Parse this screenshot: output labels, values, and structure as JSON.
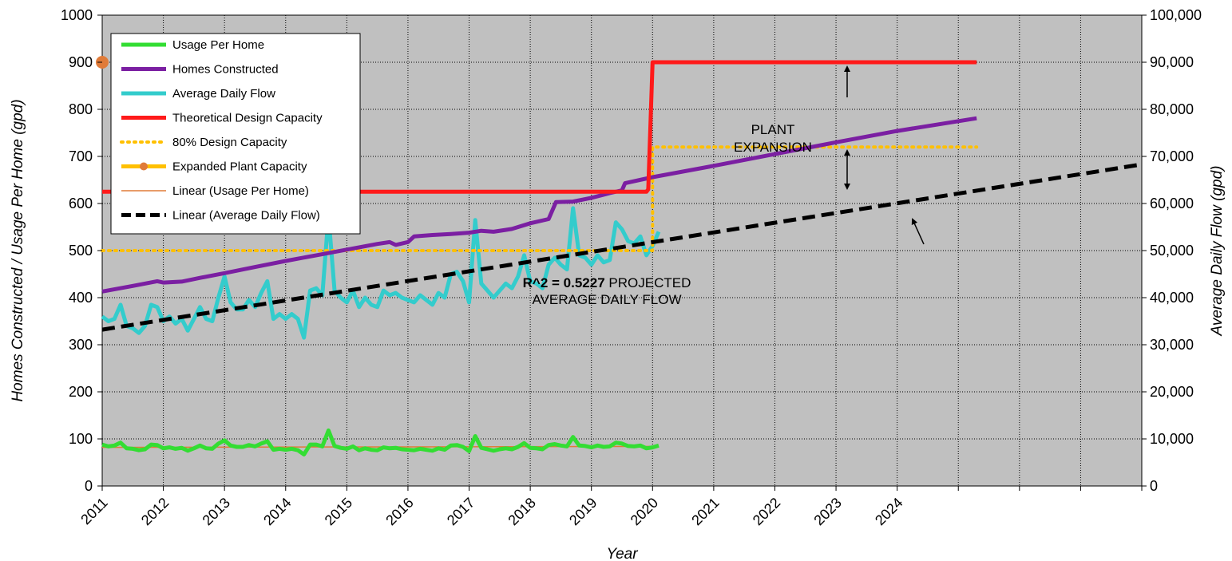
{
  "chart_data": {
    "type": "line",
    "title": "",
    "xlabel": "Year",
    "ylabel_left": "Homes Constructed / Usage Per Home (gpd)",
    "ylabel_right": "Average Daily Flow (gpd)",
    "x_range": [
      2011.0,
      2028.0
    ],
    "ylim_left": [
      0,
      1000
    ],
    "ylim_right": [
      0,
      100000
    ],
    "x_tick_labels": [
      "2011",
      "2012",
      "2013",
      "2014",
      "2015",
      "2016",
      "2017",
      "2018",
      "2019",
      "2020",
      "2021",
      "2022",
      "2023",
      "2024"
    ],
    "x_tick_values": [
      2011,
      2012,
      2013,
      2014,
      2015,
      2016,
      2017,
      2018,
      2019,
      2020,
      2021,
      2022,
      2023,
      2024
    ],
    "y_left_ticks": [
      "0",
      "100",
      "200",
      "300",
      "400",
      "500",
      "600",
      "700",
      "800",
      "900",
      "1000"
    ],
    "y_right_ticks": [
      "0",
      "10,000",
      "20,000",
      "30,000",
      "40,000",
      "50,000",
      "60,000",
      "70,000",
      "80,000",
      "90,000",
      "100,000"
    ],
    "grid": true,
    "legend_position": "top-left",
    "series": [
      {
        "name": "Homes Constructed",
        "axis": "left",
        "color": "#7B1FA2",
        "style": "solid",
        "points": [
          [
            2011.0,
            413
          ],
          [
            2011.5,
            425
          ],
          [
            2011.9,
            435
          ],
          [
            2012.0,
            432
          ],
          [
            2012.3,
            434
          ],
          [
            2012.6,
            442
          ],
          [
            2013.0,
            452
          ],
          [
            2013.5,
            465
          ],
          [
            2014.0,
            478
          ],
          [
            2014.5,
            490
          ],
          [
            2015.0,
            502
          ],
          [
            2015.5,
            514
          ],
          [
            2015.7,
            518
          ],
          [
            2015.8,
            512
          ],
          [
            2016.0,
            518
          ],
          [
            2016.1,
            530
          ],
          [
            2016.4,
            533
          ],
          [
            2016.7,
            535
          ],
          [
            2017.0,
            538
          ],
          [
            2017.2,
            542
          ],
          [
            2017.4,
            540
          ],
          [
            2017.7,
            546
          ],
          [
            2018.0,
            558
          ],
          [
            2018.3,
            567
          ],
          [
            2018.42,
            603
          ],
          [
            2018.7,
            604
          ],
          [
            2019.0,
            612
          ],
          [
            2019.3,
            622
          ],
          [
            2019.5,
            628
          ],
          [
            2019.55,
            643
          ],
          [
            2020.0,
            656
          ],
          [
            2021.0,
            680
          ],
          [
            2022.0,
            705
          ],
          [
            2023.0,
            730
          ],
          [
            2024.0,
            754
          ],
          [
            2025.3,
            781
          ]
        ]
      },
      {
        "name": "Average Daily Flow",
        "axis": "right",
        "color": "#33CCCC",
        "style": "solid",
        "points": [
          [
            2011.0,
            36000
          ],
          [
            2011.1,
            35000
          ],
          [
            2011.2,
            35500
          ],
          [
            2011.3,
            38500
          ],
          [
            2011.4,
            34000
          ],
          [
            2011.5,
            33500
          ],
          [
            2011.6,
            32500
          ],
          [
            2011.7,
            34000
          ],
          [
            2011.8,
            38500
          ],
          [
            2011.9,
            38000
          ],
          [
            2012.0,
            35000
          ],
          [
            2012.1,
            36000
          ],
          [
            2012.2,
            34500
          ],
          [
            2012.3,
            35500
          ],
          [
            2012.4,
            33000
          ],
          [
            2012.5,
            35500
          ],
          [
            2012.6,
            38000
          ],
          [
            2012.7,
            35500
          ],
          [
            2012.8,
            35000
          ],
          [
            2012.9,
            40000
          ],
          [
            2013.0,
            44500
          ],
          [
            2013.1,
            39000
          ],
          [
            2013.2,
            37500
          ],
          [
            2013.3,
            37500
          ],
          [
            2013.4,
            39500
          ],
          [
            2013.5,
            38000
          ],
          [
            2013.6,
            41000
          ],
          [
            2013.7,
            43500
          ],
          [
            2013.8,
            35500
          ],
          [
            2013.9,
            36500
          ],
          [
            2014.0,
            35500
          ],
          [
            2014.1,
            36500
          ],
          [
            2014.2,
            35500
          ],
          [
            2014.3,
            31500
          ],
          [
            2014.4,
            41500
          ],
          [
            2014.5,
            42000
          ],
          [
            2014.6,
            40500
          ],
          [
            2014.7,
            57500
          ],
          [
            2014.8,
            41500
          ],
          [
            2014.9,
            40000
          ],
          [
            2015.0,
            39000
          ],
          [
            2015.1,
            41500
          ],
          [
            2015.2,
            38000
          ],
          [
            2015.3,
            40000
          ],
          [
            2015.4,
            38500
          ],
          [
            2015.5,
            38000
          ],
          [
            2015.6,
            41500
          ],
          [
            2015.7,
            40500
          ],
          [
            2015.8,
            41000
          ],
          [
            2015.9,
            40000
          ],
          [
            2016.0,
            39500
          ],
          [
            2016.1,
            39000
          ],
          [
            2016.2,
            40500
          ],
          [
            2016.3,
            39500
          ],
          [
            2016.4,
            38500
          ],
          [
            2016.5,
            41000
          ],
          [
            2016.6,
            40000
          ],
          [
            2016.7,
            45000
          ],
          [
            2016.8,
            45500
          ],
          [
            2016.9,
            43500
          ],
          [
            2017.0,
            39000
          ],
          [
            2017.1,
            56500
          ],
          [
            2017.2,
            43000
          ],
          [
            2017.3,
            41500
          ],
          [
            2017.4,
            40000
          ],
          [
            2017.5,
            41500
          ],
          [
            2017.6,
            43000
          ],
          [
            2017.7,
            42000
          ],
          [
            2017.8,
            44500
          ],
          [
            2017.9,
            49000
          ],
          [
            2018.0,
            43500
          ],
          [
            2018.1,
            43000
          ],
          [
            2018.2,
            42000
          ],
          [
            2018.3,
            47000
          ],
          [
            2018.4,
            48500
          ],
          [
            2018.5,
            47000
          ],
          [
            2018.6,
            46000
          ],
          [
            2018.7,
            59000
          ],
          [
            2018.8,
            49000
          ],
          [
            2018.9,
            48500
          ],
          [
            2019.0,
            47000
          ],
          [
            2019.1,
            49000
          ],
          [
            2019.2,
            47500
          ],
          [
            2019.3,
            48000
          ],
          [
            2019.4,
            56000
          ],
          [
            2019.5,
            54500
          ],
          [
            2019.6,
            52000
          ],
          [
            2019.7,
            51500
          ],
          [
            2019.8,
            53000
          ],
          [
            2019.9,
            49000
          ],
          [
            2020.0,
            51000
          ],
          [
            2020.1,
            54000
          ]
        ]
      },
      {
        "name": "Usage Per Home",
        "axis": "left",
        "color": "#33DD33",
        "style": "solid",
        "points": [
          [
            2011.0,
            88
          ],
          [
            2011.1,
            84
          ],
          [
            2011.2,
            86
          ],
          [
            2011.3,
            92
          ],
          [
            2011.4,
            80
          ],
          [
            2011.5,
            79
          ],
          [
            2011.6,
            76
          ],
          [
            2011.7,
            78
          ],
          [
            2011.8,
            88
          ],
          [
            2011.9,
            87
          ],
          [
            2012.0,
            80
          ],
          [
            2012.1,
            82
          ],
          [
            2012.2,
            79
          ],
          [
            2012.3,
            81
          ],
          [
            2012.4,
            75
          ],
          [
            2012.5,
            80
          ],
          [
            2012.6,
            86
          ],
          [
            2012.7,
            80
          ],
          [
            2012.8,
            79
          ],
          [
            2012.9,
            90
          ],
          [
            2013.0,
            97
          ],
          [
            2013.1,
            86
          ],
          [
            2013.2,
            83
          ],
          [
            2013.3,
            83
          ],
          [
            2013.4,
            87
          ],
          [
            2013.5,
            84
          ],
          [
            2013.6,
            90
          ],
          [
            2013.7,
            95
          ],
          [
            2013.8,
            77
          ],
          [
            2013.9,
            79
          ],
          [
            2014.0,
            77
          ],
          [
            2014.1,
            79
          ],
          [
            2014.2,
            76
          ],
          [
            2014.3,
            67
          ],
          [
            2014.4,
            88
          ],
          [
            2014.5,
            88
          ],
          [
            2014.6,
            84
          ],
          [
            2014.7,
            118
          ],
          [
            2014.8,
            85
          ],
          [
            2014.9,
            81
          ],
          [
            2015.0,
            79
          ],
          [
            2015.1,
            84
          ],
          [
            2015.2,
            76
          ],
          [
            2015.3,
            80
          ],
          [
            2015.4,
            77
          ],
          [
            2015.5,
            76
          ],
          [
            2015.6,
            82
          ],
          [
            2015.7,
            80
          ],
          [
            2015.8,
            81
          ],
          [
            2015.9,
            78
          ],
          [
            2016.0,
            77
          ],
          [
            2016.1,
            76
          ],
          [
            2016.2,
            79
          ],
          [
            2016.3,
            77
          ],
          [
            2016.4,
            75
          ],
          [
            2016.5,
            80
          ],
          [
            2016.6,
            77
          ],
          [
            2016.7,
            86
          ],
          [
            2016.8,
            87
          ],
          [
            2016.9,
            83
          ],
          [
            2017.0,
            74
          ],
          [
            2017.1,
            106
          ],
          [
            2017.2,
            81
          ],
          [
            2017.3,
            78
          ],
          [
            2017.4,
            75
          ],
          [
            2017.5,
            78
          ],
          [
            2017.6,
            80
          ],
          [
            2017.7,
            78
          ],
          [
            2017.8,
            83
          ],
          [
            2017.9,
            91
          ],
          [
            2018.0,
            81
          ],
          [
            2018.1,
            80
          ],
          [
            2018.2,
            78
          ],
          [
            2018.3,
            87
          ],
          [
            2018.4,
            89
          ],
          [
            2018.5,
            86
          ],
          [
            2018.6,
            84
          ],
          [
            2018.7,
            104
          ],
          [
            2018.8,
            86
          ],
          [
            2018.9,
            85
          ],
          [
            2019.0,
            82
          ],
          [
            2019.1,
            86
          ],
          [
            2019.2,
            83
          ],
          [
            2019.3,
            84
          ],
          [
            2019.4,
            92
          ],
          [
            2019.5,
            90
          ],
          [
            2019.6,
            85
          ],
          [
            2019.7,
            84
          ],
          [
            2019.8,
            86
          ],
          [
            2019.9,
            80
          ],
          [
            2020.0,
            82
          ],
          [
            2020.1,
            86
          ]
        ]
      },
      {
        "name": "Theoretical Design Capacity",
        "axis": "right",
        "color": "#FF1A1A",
        "style": "solid",
        "points": [
          [
            2011.0,
            62500
          ],
          [
            2019.9,
            62500
          ],
          [
            2019.93,
            63000
          ],
          [
            2020.0,
            90000
          ],
          [
            2025.3,
            90000
          ]
        ]
      },
      {
        "name": "80% Design Capacity",
        "axis": "right",
        "color": "#FFC000",
        "style": "dotted",
        "points": [
          [
            2011.0,
            50000
          ],
          [
            2020.0,
            50000
          ],
          [
            2020.0,
            72000
          ],
          [
            2025.3,
            72000
          ]
        ]
      },
      {
        "name": "Expanded Plant Capacity",
        "axis": "right",
        "color": "#FFC000",
        "marker_color": "#E07B39",
        "style": "marker",
        "points": [
          [
            2011.0,
            90000
          ]
        ]
      },
      {
        "name": "Linear (Usage Per Home)",
        "axis": "left",
        "color": "#E07B39",
        "style": "thin",
        "points": [
          [
            2011.0,
            82
          ],
          [
            2020.1,
            84
          ]
        ]
      },
      {
        "name": "Linear (Average Daily Flow)",
        "axis": "right",
        "color": "#000000",
        "style": "dashed",
        "points": [
          [
            2011.0,
            33200
          ],
          [
            2028.0,
            68300
          ]
        ]
      }
    ],
    "legend": [
      {
        "name": "Usage Per Home",
        "color": "#33DD33",
        "style": "solid"
      },
      {
        "name": "Homes Constructed",
        "color": "#7B1FA2",
        "style": "solid"
      },
      {
        "name": "Average Daily Flow",
        "color": "#33CCCC",
        "style": "solid"
      },
      {
        "name": "Theoretical Design Capacity",
        "color": "#FF1A1A",
        "style": "solid"
      },
      {
        "name": "80% Design Capacity",
        "color": "#FFC000",
        "style": "dotted"
      },
      {
        "name": "Expanded Plant Capacity",
        "color": "#FFC000",
        "marker_color": "#E07B39",
        "style": "marker"
      },
      {
        "name": "Linear (Usage Per Home)",
        "color": "#E07B39",
        "style": "thin"
      },
      {
        "name": "Linear (Average Daily Flow)",
        "color": "#000000",
        "style": "dashed"
      }
    ],
    "annotations": {
      "plant_expansion": [
        "PLANT",
        "EXPANSION"
      ],
      "r2_bold": "R^2 = 0.5227",
      "r2_rest": " PROJECTED",
      "projected_line2": "AVERAGE DAILY FLOW"
    },
    "colors": {
      "plot_background": "#C0C0C0",
      "grid": "#000000"
    }
  }
}
